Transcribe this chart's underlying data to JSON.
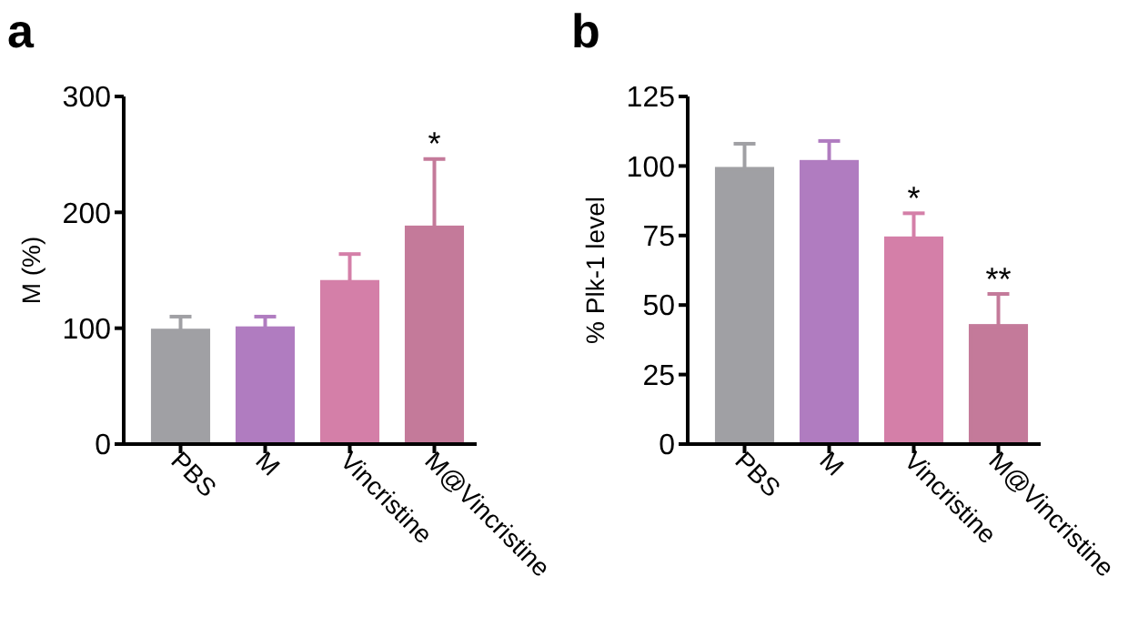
{
  "chart_data": [
    {
      "type": "bar",
      "title": "a",
      "ylabel": "M (%)",
      "categories": [
        "PBS",
        "M",
        "Vincristine",
        "M@Vincristine"
      ],
      "values": [
        98,
        100,
        140,
        187
      ],
      "errors": [
        [
          98,
          110
        ],
        [
          100,
          110
        ],
        [
          140,
          164
        ],
        [
          187,
          246
        ]
      ],
      "colors": [
        "#a0a0a4",
        "#b07cc0",
        "#d47fa8",
        "#c47a9a"
      ],
      "ylim": [
        0,
        300
      ],
      "yticks": [
        0,
        100,
        200,
        300
      ],
      "annotations": [
        {
          "text": "*",
          "x": "M@Vincristine",
          "y": 246
        }
      ]
    },
    {
      "type": "bar",
      "title": "b",
      "ylabel": "% Plk-1 level",
      "categories": [
        "PBS",
        "M",
        "Vincristine",
        "M@Vincristine"
      ],
      "values": [
        99,
        101.5,
        74,
        42.5
      ],
      "errors": [
        [
          99,
          108
        ],
        [
          101.5,
          109
        ],
        [
          74,
          83
        ],
        [
          42.5,
          54
        ]
      ],
      "colors": [
        "#a0a0a4",
        "#b07cc0",
        "#d47fa8",
        "#c47a9a"
      ],
      "ylim": [
        0,
        125
      ],
      "yticks": [
        0,
        25,
        50,
        75,
        100,
        125
      ],
      "annotations": [
        {
          "text": "*",
          "x": "Vincristine",
          "y": 83
        },
        {
          "text": "**",
          "x": "M@Vincristine",
          "y": 54
        }
      ]
    }
  ]
}
